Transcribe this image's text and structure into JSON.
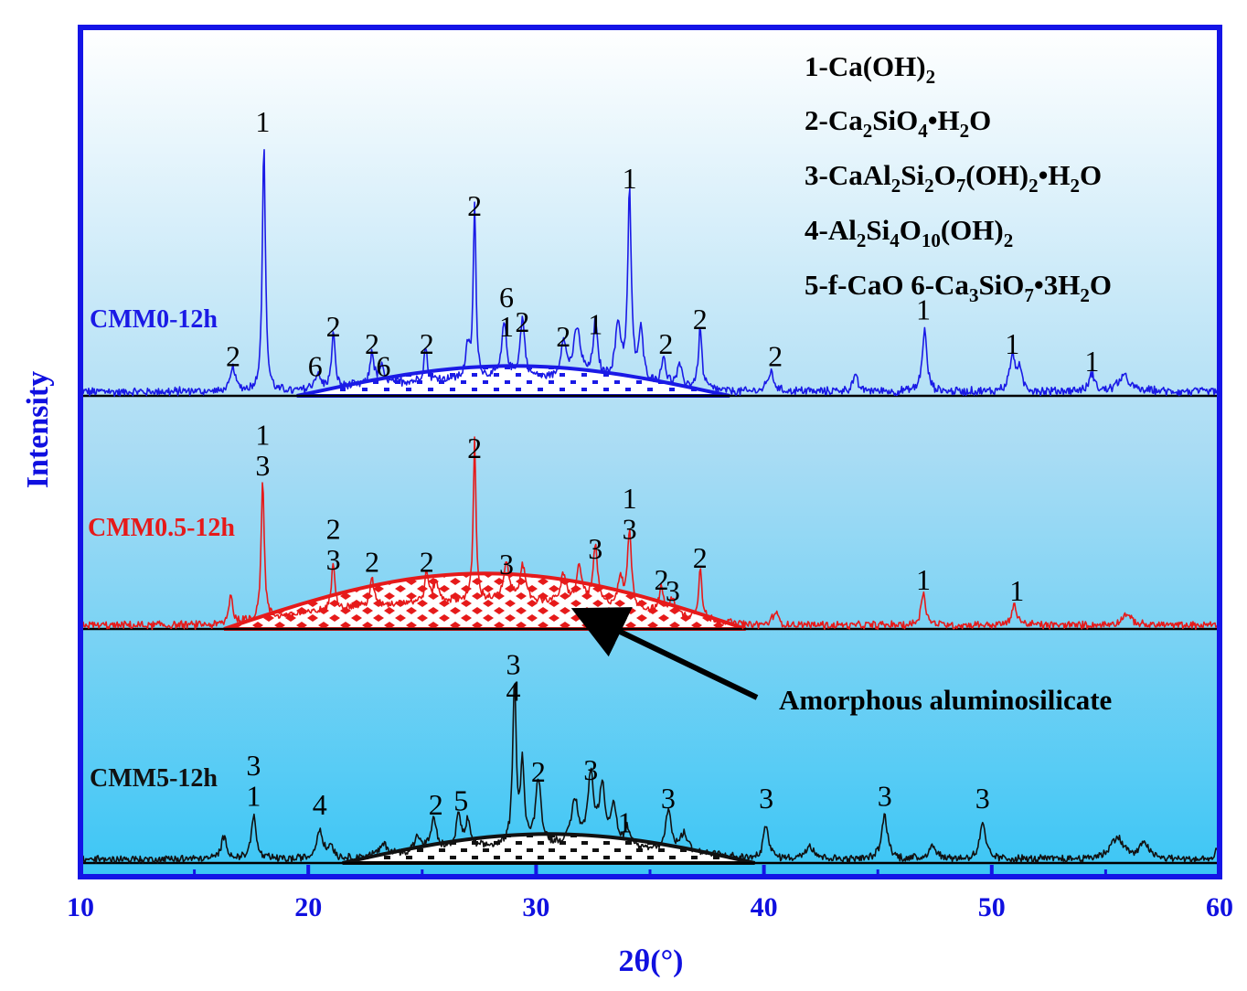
{
  "chart_data": {
    "type": "line",
    "title": "",
    "xlabel": "2θ(°)",
    "ylabel": "Intensity",
    "xlim": [
      10,
      60
    ],
    "x_ticks": [
      "10",
      "20",
      "30",
      "40",
      "50",
      "60"
    ],
    "legend": {
      "position": "top-right",
      "entries": [
        {
          "id": "1",
          "name": "Ca(OH)",
          "sub": "2",
          "rest": ""
        },
        {
          "id": "2",
          "name": "Ca₂SiO₄•H₂O"
        },
        {
          "id": "3",
          "name": "CaAl₂Si₂O₇(OH)₂•H₂O"
        },
        {
          "id": "4",
          "name": "Al₂Si₄O₁₀(OH)₂"
        },
        {
          "id": "5",
          "name": "f-CaO"
        },
        {
          "id": "6",
          "name": "Ca₃SiO₇•3H₂O"
        }
      ],
      "lines": [
        "1-Ca(OH)2",
        "2-Ca2SiO4•H2O",
        "3-CaAl2Si2O7(OH)2•H2O",
        "4-Al2Si4O10(OH)2",
        "5-f-CaO 6-Ca3SiO7•3H2O"
      ]
    },
    "annotation": "Amorphous aluminosilicate",
    "series": [
      {
        "name": "CMM0-12h",
        "color": "#1a1ae6",
        "peaks": [
          {
            "x": 16.7,
            "h": 0.1,
            "w": 0.12
          },
          {
            "x": 18.05,
            "h": 1.0,
            "w": 0.08
          },
          {
            "x": 20.4,
            "h": 0.06,
            "w": 0.15
          },
          {
            "x": 21.1,
            "h": 0.22,
            "w": 0.09
          },
          {
            "x": 22.8,
            "h": 0.14,
            "w": 0.09
          },
          {
            "x": 23.2,
            "h": 0.07,
            "w": 0.12
          },
          {
            "x": 25.15,
            "h": 0.14,
            "w": 0.08
          },
          {
            "x": 27.0,
            "h": 0.12,
            "w": 0.1
          },
          {
            "x": 27.3,
            "h": 0.7,
            "w": 0.07
          },
          {
            "x": 28.6,
            "h": 0.22,
            "w": 0.12
          },
          {
            "x": 29.4,
            "h": 0.24,
            "w": 0.12
          },
          {
            "x": 31.2,
            "h": 0.16,
            "w": 0.12
          },
          {
            "x": 31.8,
            "h": 0.2,
            "w": 0.18
          },
          {
            "x": 32.6,
            "h": 0.22,
            "w": 0.12
          },
          {
            "x": 33.6,
            "h": 0.22,
            "w": 0.15
          },
          {
            "x": 34.1,
            "h": 0.76,
            "w": 0.09
          },
          {
            "x": 34.6,
            "h": 0.2,
            "w": 0.12
          },
          {
            "x": 35.6,
            "h": 0.12,
            "w": 0.1
          },
          {
            "x": 36.3,
            "h": 0.08,
            "w": 0.12
          },
          {
            "x": 37.2,
            "h": 0.24,
            "w": 0.09
          },
          {
            "x": 40.3,
            "h": 0.08,
            "w": 0.15
          },
          {
            "x": 44.0,
            "h": 0.06,
            "w": 0.15
          },
          {
            "x": 47.05,
            "h": 0.25,
            "w": 0.12
          },
          {
            "x": 50.9,
            "h": 0.14,
            "w": 0.14
          },
          {
            "x": 51.2,
            "h": 0.08,
            "w": 0.14
          },
          {
            "x": 54.4,
            "h": 0.07,
            "w": 0.14
          },
          {
            "x": 55.8,
            "h": 0.06,
            "w": 0.3
          }
        ],
        "peak_labels": [
          {
            "x": 16.7,
            "text": "2",
            "h": 0.12
          },
          {
            "x": 18.0,
            "text": "1",
            "h": 1.07
          },
          {
            "x": 20.3,
            "text": "6",
            "h": 0.08
          },
          {
            "x": 21.1,
            "text": "2",
            "h": 0.24
          },
          {
            "x": 22.8,
            "text": "2",
            "h": 0.17
          },
          {
            "x": 23.3,
            "text": "6",
            "h": 0.08
          },
          {
            "x": 25.2,
            "text": "2",
            "h": 0.17
          },
          {
            "x": 27.3,
            "text": "2",
            "h": 0.73
          },
          {
            "x": 28.7,
            "text": "6",
            "h": 0.36
          },
          {
            "x": 28.7,
            "text": "1",
            "h": 0.24
          },
          {
            "x": 29.4,
            "text": "2",
            "h": 0.26
          },
          {
            "x": 31.2,
            "text": "2",
            "h": 0.2
          },
          {
            "x": 32.6,
            "text": "1",
            "h": 0.25
          },
          {
            "x": 34.1,
            "text": "1",
            "h": 0.84
          },
          {
            "x": 35.7,
            "text": "2",
            "h": 0.17
          },
          {
            "x": 37.2,
            "text": "2",
            "h": 0.27
          },
          {
            "x": 40.5,
            "text": "2",
            "h": 0.12
          },
          {
            "x": 47.0,
            "text": "1",
            "h": 0.31
          },
          {
            "x": 50.9,
            "text": "1",
            "h": 0.17
          },
          {
            "x": 54.4,
            "text": "1",
            "h": 0.1
          }
        ],
        "hump": {
          "from": 19.5,
          "to": 38.5,
          "height": 0.055
        }
      },
      {
        "name": "CMM0.5-12h",
        "color": "#e61a1a",
        "peaks": [
          {
            "x": 16.6,
            "h": 0.14,
            "w": 0.1
          },
          {
            "x": 18.0,
            "h": 0.64,
            "w": 0.08
          },
          {
            "x": 21.1,
            "h": 0.22,
            "w": 0.09
          },
          {
            "x": 22.8,
            "h": 0.12,
            "w": 0.1
          },
          {
            "x": 25.2,
            "h": 0.14,
            "w": 0.09
          },
          {
            "x": 25.6,
            "h": 0.1,
            "w": 0.1
          },
          {
            "x": 27.3,
            "h": 0.73,
            "w": 0.07
          },
          {
            "x": 28.7,
            "h": 0.16,
            "w": 0.14
          },
          {
            "x": 29.4,
            "h": 0.16,
            "w": 0.14
          },
          {
            "x": 31.2,
            "h": 0.12,
            "w": 0.14
          },
          {
            "x": 31.9,
            "h": 0.16,
            "w": 0.15
          },
          {
            "x": 32.6,
            "h": 0.26,
            "w": 0.12
          },
          {
            "x": 33.7,
            "h": 0.12,
            "w": 0.15
          },
          {
            "x": 34.1,
            "h": 0.36,
            "w": 0.1
          },
          {
            "x": 35.5,
            "h": 0.12,
            "w": 0.1
          },
          {
            "x": 36.0,
            "h": 0.08,
            "w": 0.12
          },
          {
            "x": 37.2,
            "h": 0.24,
            "w": 0.08
          },
          {
            "x": 40.5,
            "h": 0.06,
            "w": 0.15
          },
          {
            "x": 47.0,
            "h": 0.15,
            "w": 0.12
          },
          {
            "x": 51.0,
            "h": 0.09,
            "w": 0.15
          },
          {
            "x": 55.9,
            "h": 0.05,
            "w": 0.25
          }
        ],
        "peak_labels": [
          {
            "x": 18.0,
            "text": "1",
            "h": 0.84
          },
          {
            "x": 18.0,
            "text": "3",
            "h": 0.7
          },
          {
            "x": 21.1,
            "text": "2",
            "h": 0.41
          },
          {
            "x": 21.1,
            "text": "3",
            "h": 0.27
          },
          {
            "x": 22.8,
            "text": "2",
            "h": 0.26
          },
          {
            "x": 25.2,
            "text": "2",
            "h": 0.26
          },
          {
            "x": 27.3,
            "text": "2",
            "h": 0.78
          },
          {
            "x": 28.7,
            "text": "3",
            "h": 0.25
          },
          {
            "x": 32.6,
            "text": "3",
            "h": 0.32
          },
          {
            "x": 34.1,
            "text": "1",
            "h": 0.55
          },
          {
            "x": 34.1,
            "text": "3",
            "h": 0.41
          },
          {
            "x": 35.5,
            "text": "2",
            "h": 0.18
          },
          {
            "x": 36.0,
            "text": "3",
            "h": 0.13
          },
          {
            "x": 37.2,
            "text": "2",
            "h": 0.28
          },
          {
            "x": 47.0,
            "text": "1",
            "h": 0.18
          },
          {
            "x": 51.1,
            "text": "1",
            "h": 0.13
          }
        ],
        "hump": {
          "from": 16.3,
          "to": 39.2,
          "height": 0.115
        }
      },
      {
        "name": "CMM5-12h",
        "color": "#111111",
        "peaks": [
          {
            "x": 16.3,
            "h": 0.1,
            "w": 0.15
          },
          {
            "x": 17.6,
            "h": 0.2,
            "w": 0.12
          },
          {
            "x": 20.5,
            "h": 0.14,
            "w": 0.15
          },
          {
            "x": 21.0,
            "h": 0.06,
            "w": 0.15
          },
          {
            "x": 23.3,
            "h": 0.05,
            "w": 0.2
          },
          {
            "x": 24.8,
            "h": 0.07,
            "w": 0.15
          },
          {
            "x": 25.5,
            "h": 0.14,
            "w": 0.15
          },
          {
            "x": 26.6,
            "h": 0.16,
            "w": 0.12
          },
          {
            "x": 27.0,
            "h": 0.12,
            "w": 0.12
          },
          {
            "x": 29.05,
            "h": 0.74,
            "w": 0.09
          },
          {
            "x": 29.4,
            "h": 0.36,
            "w": 0.1
          },
          {
            "x": 30.1,
            "h": 0.3,
            "w": 0.14
          },
          {
            "x": 31.7,
            "h": 0.2,
            "w": 0.18
          },
          {
            "x": 32.4,
            "h": 0.32,
            "w": 0.15
          },
          {
            "x": 32.9,
            "h": 0.26,
            "w": 0.15
          },
          {
            "x": 33.4,
            "h": 0.18,
            "w": 0.15
          },
          {
            "x": 34.0,
            "h": 0.08,
            "w": 0.12
          },
          {
            "x": 35.8,
            "h": 0.18,
            "w": 0.15
          },
          {
            "x": 36.5,
            "h": 0.08,
            "w": 0.2
          },
          {
            "x": 40.1,
            "h": 0.16,
            "w": 0.14
          },
          {
            "x": 42.0,
            "h": 0.06,
            "w": 0.25
          },
          {
            "x": 45.3,
            "h": 0.2,
            "w": 0.15
          },
          {
            "x": 47.4,
            "h": 0.06,
            "w": 0.2
          },
          {
            "x": 49.6,
            "h": 0.16,
            "w": 0.15
          },
          {
            "x": 55.5,
            "h": 0.1,
            "w": 0.35
          },
          {
            "x": 56.7,
            "h": 0.08,
            "w": 0.2
          },
          {
            "x": 59.9,
            "h": 0.04,
            "w": 0.1
          }
        ],
        "peak_labels": [
          {
            "x": 17.6,
            "text": "3",
            "h": 0.4
          },
          {
            "x": 17.6,
            "text": "1",
            "h": 0.26
          },
          {
            "x": 20.5,
            "text": "4",
            "h": 0.22
          },
          {
            "x": 25.6,
            "text": "2",
            "h": 0.22
          },
          {
            "x": 26.7,
            "text": "5",
            "h": 0.24
          },
          {
            "x": 29.0,
            "text": "3",
            "h": 0.86
          },
          {
            "x": 29.0,
            "text": "4",
            "h": 0.74
          },
          {
            "x": 30.1,
            "text": "2",
            "h": 0.37
          },
          {
            "x": 32.4,
            "text": "3",
            "h": 0.38
          },
          {
            "x": 33.9,
            "text": "1",
            "h": 0.14
          },
          {
            "x": 35.8,
            "text": "3",
            "h": 0.25
          },
          {
            "x": 40.1,
            "text": "3",
            "h": 0.25
          },
          {
            "x": 45.3,
            "text": "3",
            "h": 0.26
          },
          {
            "x": 49.6,
            "text": "3",
            "h": 0.25
          }
        ],
        "hump": {
          "from": 21.5,
          "to": 39.6,
          "height": 0.06
        }
      }
    ]
  }
}
